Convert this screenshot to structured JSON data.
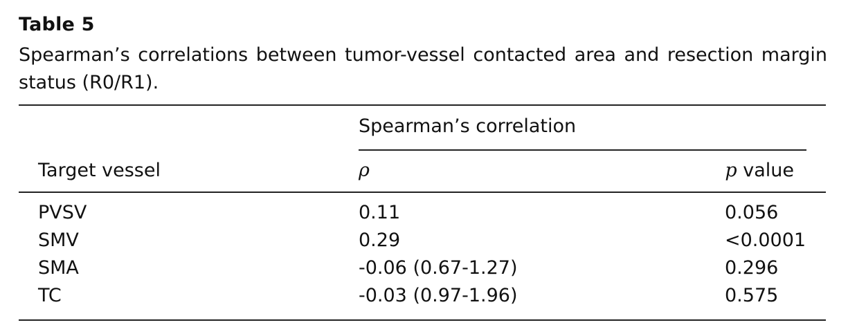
{
  "table": {
    "label": "Table 5",
    "caption": "Spearman’s correlations between tumor-vessel contacted area and resection margin status (R0/R1).",
    "group_header": "Spearman’s correlation",
    "columns": {
      "vessel": "Target vessel",
      "rho": "ρ",
      "p_symbol": "p",
      "p_suffix": " value"
    },
    "rows": [
      {
        "vessel": "PVSV",
        "rho": "0.11",
        "p": "0.056"
      },
      {
        "vessel": "SMV",
        "rho": "0.29",
        "p": "<0.0001"
      },
      {
        "vessel": "SMA",
        "rho": "-0.06 (0.67-1.27)",
        "p": "0.296"
      },
      {
        "vessel": "TC",
        "rho": "-0.03 (0.97-1.96)",
        "p": "0.575"
      }
    ]
  }
}
